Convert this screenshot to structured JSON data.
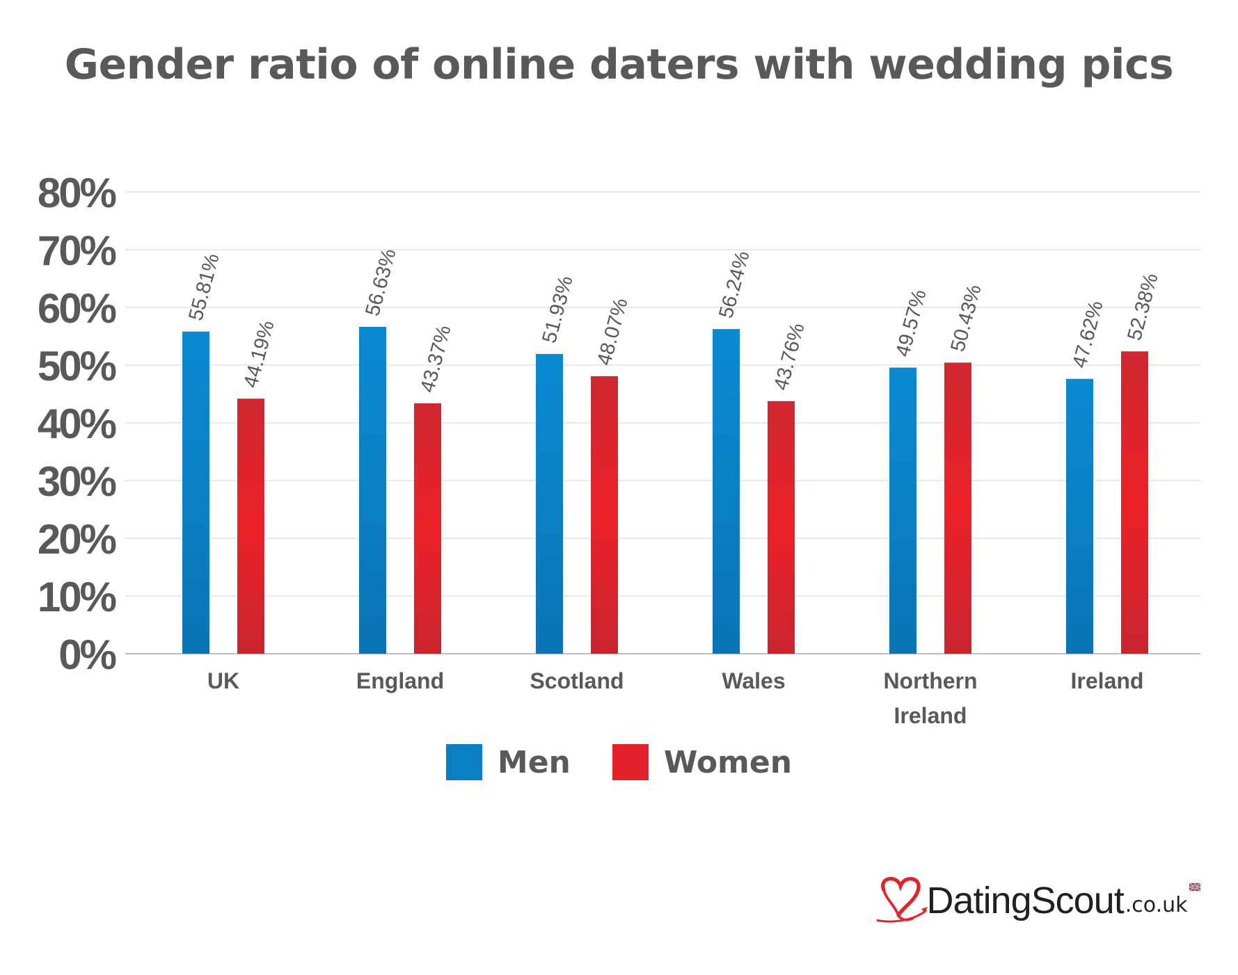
{
  "chart_data": {
    "type": "bar",
    "title": "Gender ratio of online daters with wedding pics",
    "xlabel": "",
    "ylabel": "",
    "ylim": [
      0,
      80
    ],
    "y_ticks": [
      "0%",
      "10%",
      "20%",
      "30%",
      "40%",
      "50%",
      "60%",
      "70%",
      "80%"
    ],
    "y_tick_values": [
      0,
      10,
      20,
      30,
      40,
      50,
      60,
      70,
      80
    ],
    "grid": true,
    "legend_position": "bottom-center",
    "categories": [
      "UK",
      "England",
      "Scotland",
      "Wales",
      "Northern Ireland",
      "Ireland"
    ],
    "category_lines": [
      [
        "UK"
      ],
      [
        "England"
      ],
      [
        "Scotland"
      ],
      [
        "Wales"
      ],
      [
        "Northern",
        "Ireland"
      ],
      [
        "Ireland"
      ]
    ],
    "series": [
      {
        "name": "Men",
        "color": "#0a7fc2",
        "values": [
          55.81,
          56.63,
          51.93,
          56.24,
          49.57,
          47.62
        ],
        "labels": [
          "55.81%",
          "56.63%",
          "51.93%",
          "56.24%",
          "49.57%",
          "47.62%"
        ]
      },
      {
        "name": "Women",
        "color": "#e3232b",
        "values": [
          44.19,
          43.37,
          48.07,
          43.76,
          50.43,
          52.38
        ],
        "labels": [
          "44.19%",
          "43.37%",
          "48.07%",
          "43.76%",
          "50.43%",
          "52.38%"
        ]
      }
    ]
  },
  "logo": {
    "name": "DatingScout",
    "tld": ".co.uk"
  },
  "colors": {
    "text": "#58595b",
    "grid": "#d9d9d9",
    "men": "#0a7fc2",
    "women": "#e3232b"
  }
}
